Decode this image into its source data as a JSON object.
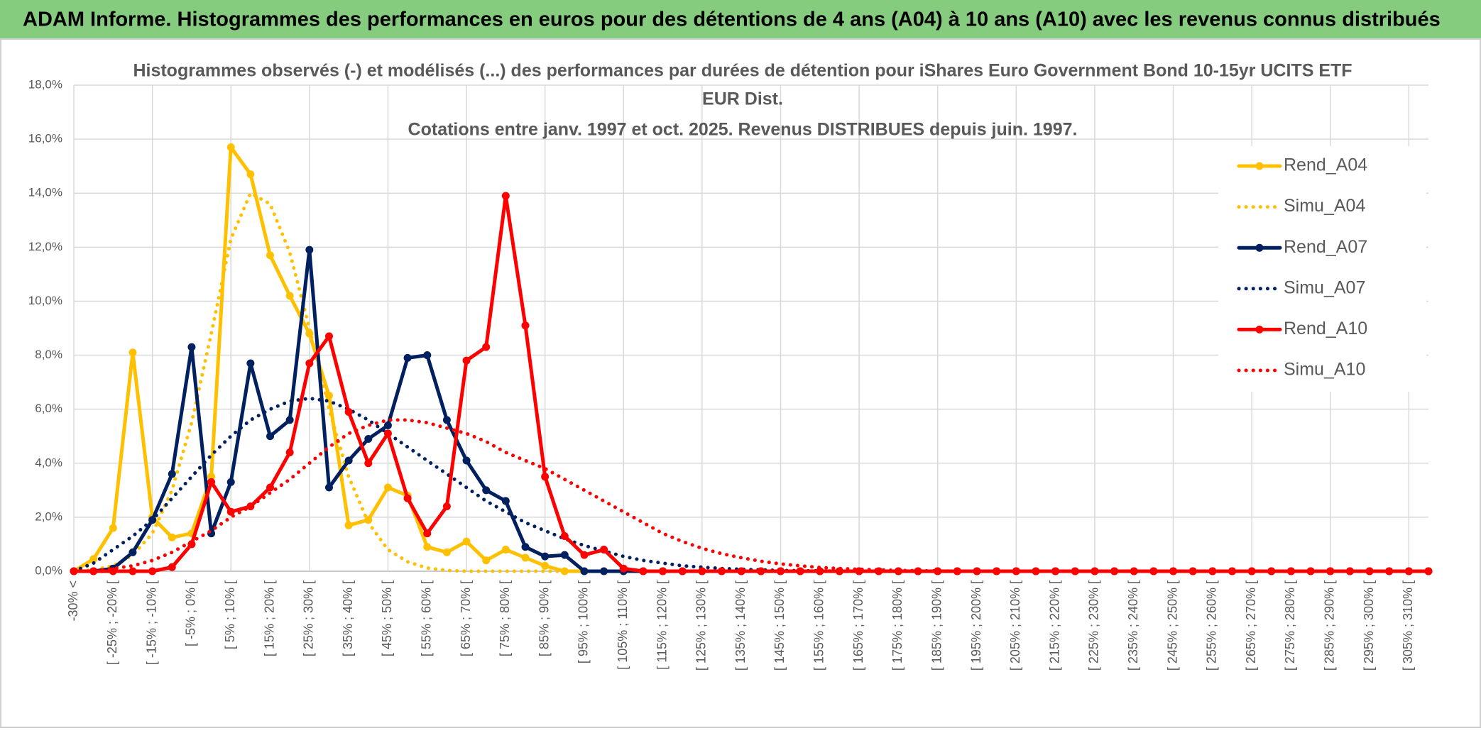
{
  "header": {
    "title": "ADAM Informe. Histogrammes des performances en euros pour des détentions de 4 ans (A04) à 10 ans (A10) avec les revenus connus distribués"
  },
  "chart_data": {
    "type": "line",
    "title": [
      "Histogrammes observés (-) et modélisés (...) des performances par durées de détention pour iShares Euro Government Bond 10-15yr UCITS ETF",
      "EUR Dist.",
      "Cotations entre janv. 1997 et oct. 2025. Revenus DISTRIBUES depuis juin. 1997."
    ],
    "categories": [
      "-30% <",
      null,
      "[ -25% ; -20% [",
      null,
      "[ -15% ; -10% [",
      null,
      "[ -5% ; 0% [",
      null,
      "[ 5% ; 10% [",
      null,
      "[ 15% ; 20% [",
      null,
      "[ 25% ; 30% [",
      null,
      "[ 35% ; 40% [",
      null,
      "[ 45% ; 50% [",
      null,
      "[ 55% ; 60% [",
      null,
      "[ 65% ; 70% [",
      null,
      "[ 75% ; 80% [",
      null,
      "[ 85% ; 90% [",
      null,
      "[ 95% ; 100% [",
      null,
      "[ 105% ; 110% [",
      null,
      "[ 115% ; 120% [",
      null,
      "[ 125% ; 130% [",
      null,
      "[ 135% ; 140% [",
      null,
      "[ 145% ; 150% [",
      null,
      "[ 155% ; 160% [",
      null,
      "[ 165% ; 170% [",
      null,
      "[ 175% ; 180% [",
      null,
      "[ 185% ; 190% [",
      null,
      "[ 195% ; 200% [",
      null,
      "[ 205% ; 210% [",
      null,
      "[ 215% ; 220% [",
      null,
      "[ 225% ; 230% [",
      null,
      "[ 235% ; 240% [",
      null,
      "[ 245% ; 250% [",
      null,
      "[ 255% ; 260% [",
      null,
      "[ 265% ; 270% [",
      null,
      "[ 275% ; 280% [",
      null,
      "[ 285% ; 290% [",
      null,
      "[ 295% ; 300% [",
      null,
      "[ 305% ; 310% [",
      null
    ],
    "series": [
      {
        "name": "Rend_A04",
        "color": "#ffc000",
        "style": "solid",
        "markers": true,
        "values": [
          0,
          0.45,
          1.6,
          8.1,
          2.0,
          1.25,
          1.4,
          3.5,
          15.7,
          14.7,
          11.7,
          10.2,
          8.8,
          6.5,
          1.7,
          1.9,
          3.1,
          2.8,
          0.9,
          0.7,
          1.1,
          0.4,
          0.8,
          0.5,
          0.2,
          0,
          0,
          0,
          0,
          0,
          0,
          0,
          0,
          0,
          0,
          0,
          0,
          0,
          0,
          0,
          0,
          0,
          0,
          0,
          0,
          0,
          0,
          0,
          0,
          0,
          0,
          0,
          0,
          0,
          0,
          0,
          0,
          0,
          0,
          0,
          0,
          0,
          0,
          0,
          0,
          0,
          0,
          0,
          0,
          0
        ]
      },
      {
        "name": "Simu_A04",
        "color": "#ffc000",
        "style": "dotted",
        "markers": false,
        "values": [
          0,
          0.05,
          0.2,
          0.6,
          1.4,
          3.0,
          5.5,
          8.8,
          12.3,
          14.0,
          13.6,
          11.8,
          9.0,
          6.0,
          3.5,
          1.8,
          0.8,
          0.35,
          0.12,
          0.03,
          0,
          0,
          0,
          0,
          0,
          0,
          0,
          0,
          0,
          0,
          0,
          0,
          0,
          0,
          0,
          0,
          0,
          0,
          0,
          0,
          0,
          0,
          0,
          0,
          0,
          0,
          0,
          0,
          0,
          0,
          0,
          0,
          0,
          0,
          0,
          0,
          0,
          0,
          0,
          0,
          0,
          0,
          0,
          0,
          0,
          0,
          0,
          0,
          0,
          0
        ]
      },
      {
        "name": "Rend_A07",
        "color": "#002060",
        "style": "solid",
        "markers": true,
        "values": [
          0,
          0,
          0.1,
          0.7,
          1.9,
          3.6,
          8.3,
          1.4,
          3.3,
          7.7,
          5.0,
          5.6,
          11.9,
          3.1,
          4.1,
          4.9,
          5.4,
          7.9,
          8.0,
          5.6,
          4.1,
          3.0,
          2.6,
          0.9,
          0.55,
          0.6,
          0,
          0,
          0,
          0,
          0,
          0,
          0,
          0,
          0,
          0,
          0,
          0,
          0,
          0,
          0,
          0,
          0,
          0,
          0,
          0,
          0,
          0,
          0,
          0,
          0,
          0,
          0,
          0,
          0,
          0,
          0,
          0,
          0,
          0,
          0,
          0,
          0,
          0,
          0,
          0,
          0,
          0,
          0,
          0
        ]
      },
      {
        "name": "Simu_A07",
        "color": "#002060",
        "style": "dotted",
        "markers": false,
        "values": [
          0,
          0.3,
          0.8,
          1.3,
          1.9,
          2.7,
          3.5,
          4.3,
          5.0,
          5.6,
          6.0,
          6.3,
          6.4,
          6.3,
          6.0,
          5.6,
          5.1,
          4.6,
          4.1,
          3.6,
          3.1,
          2.6,
          2.2,
          1.8,
          1.5,
          1.2,
          0.95,
          0.75,
          0.55,
          0.4,
          0.3,
          0.2,
          0.15,
          0.1,
          0.07,
          0.05,
          0.03,
          0.02,
          0.01,
          0,
          0,
          0,
          0,
          0,
          0,
          0,
          0,
          0,
          0,
          0,
          0,
          0,
          0,
          0,
          0,
          0,
          0,
          0,
          0,
          0,
          0,
          0,
          0,
          0,
          0,
          0,
          0,
          0,
          0,
          0
        ]
      },
      {
        "name": "Rend_A10",
        "color": "#ff0000",
        "style": "solid",
        "markers": true,
        "values": [
          0,
          0,
          0,
          0,
          0,
          0.15,
          1.0,
          3.3,
          2.2,
          2.4,
          3.1,
          4.4,
          7.7,
          8.7,
          5.9,
          4.0,
          5.1,
          2.7,
          1.4,
          2.4,
          7.8,
          8.3,
          13.9,
          9.1,
          3.5,
          1.3,
          0.6,
          0.8,
          0.1,
          0,
          0,
          0,
          0,
          0,
          0,
          0,
          0,
          0,
          0,
          0,
          0,
          0,
          0,
          0,
          0,
          0,
          0,
          0,
          0,
          0,
          0,
          0,
          0,
          0,
          0,
          0,
          0,
          0,
          0,
          0,
          0,
          0,
          0,
          0,
          0,
          0,
          0,
          0,
          0,
          0
        ]
      },
      {
        "name": "Simu_A10",
        "color": "#ff0000",
        "style": "dotted",
        "markers": false,
        "values": [
          0,
          0,
          0.1,
          0.2,
          0.4,
          0.7,
          1.1,
          1.5,
          2.0,
          2.4,
          2.9,
          3.4,
          4.0,
          4.6,
          5.1,
          5.4,
          5.6,
          5.6,
          5.5,
          5.3,
          5.1,
          4.8,
          4.4,
          4.1,
          3.8,
          3.4,
          3.0,
          2.6,
          2.2,
          1.8,
          1.4,
          1.1,
          0.85,
          0.65,
          0.5,
          0.37,
          0.27,
          0.2,
          0.14,
          0.1,
          0.07,
          0.05,
          0.03,
          0.02,
          0.01,
          0,
          0,
          0,
          0,
          0,
          0,
          0,
          0,
          0,
          0,
          0,
          0,
          0,
          0,
          0,
          0,
          0,
          0,
          0,
          0,
          0,
          0,
          0,
          0,
          0
        ]
      }
    ],
    "ylim": [
      0,
      18
    ],
    "yticks": [
      {
        "value": 0,
        "label": "0,0%"
      },
      {
        "value": 2,
        "label": "2,0%"
      },
      {
        "value": 4,
        "label": "4,0%"
      },
      {
        "value": 6,
        "label": "6,0%"
      },
      {
        "value": 8,
        "label": "8,0%"
      },
      {
        "value": 10,
        "label": "10,0%"
      },
      {
        "value": 12,
        "label": "12,0%"
      },
      {
        "value": 14,
        "label": "14,0%"
      },
      {
        "value": 16,
        "label": "16,0%"
      },
      {
        "value": 18,
        "label": "18,0%"
      }
    ],
    "grid": true,
    "legend": "right"
  }
}
